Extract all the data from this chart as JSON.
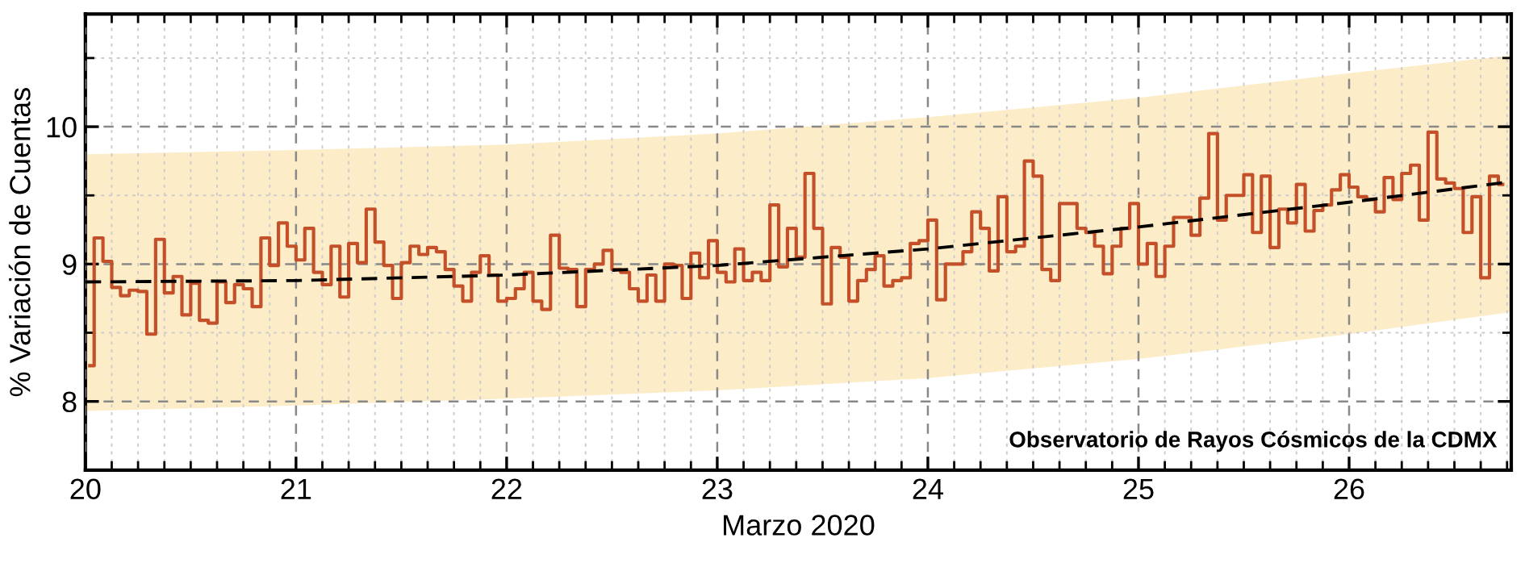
{
  "chart_data": {
    "type": "step",
    "xlabel": "Marzo 2020",
    "ylabel": "% Variación de Cuentas",
    "xlim": [
      20,
      26.77
    ],
    "ylim": [
      7.5,
      10.82
    ],
    "xticks": [
      20,
      {
        "value": 20.125,
        "label": null
      },
      {
        "value": 20.25,
        "label": null
      },
      {
        "value": 20.375,
        "label": null
      },
      {
        "value": 20.5,
        "label": null
      },
      {
        "value": 20.625,
        "label": null
      },
      {
        "value": 20.75,
        "label": null
      },
      {
        "value": 20.875,
        "label": null
      },
      21,
      {
        "value": 21.125,
        "label": null
      },
      {
        "value": 21.25,
        "label": null
      },
      {
        "value": 21.375,
        "label": null
      },
      {
        "value": 21.5,
        "label": null
      },
      {
        "value": 21.625,
        "label": null
      },
      {
        "value": 21.75,
        "label": null
      },
      {
        "value": 21.875,
        "label": null
      },
      22,
      {
        "value": 22.125,
        "label": null
      },
      {
        "value": 22.25,
        "label": null
      },
      {
        "value": 22.375,
        "label": null
      },
      {
        "value": 22.5,
        "label": null
      },
      {
        "value": 22.625,
        "label": null
      },
      {
        "value": 22.75,
        "label": null
      },
      {
        "value": 22.875,
        "label": null
      },
      23,
      {
        "value": 23.125,
        "label": null
      },
      {
        "value": 23.25,
        "label": null
      },
      {
        "value": 23.375,
        "label": null
      },
      {
        "value": 23.5,
        "label": null
      },
      {
        "value": 23.625,
        "label": null
      },
      {
        "value": 23.75,
        "label": null
      },
      {
        "value": 23.875,
        "label": null
      },
      24,
      {
        "value": 24.125,
        "label": null
      },
      {
        "value": 24.25,
        "label": null
      },
      {
        "value": 24.375,
        "label": null
      },
      {
        "value": 24.5,
        "label": null
      },
      {
        "value": 24.625,
        "label": null
      },
      {
        "value": 24.75,
        "label": null
      },
      {
        "value": 24.875,
        "label": null
      },
      25,
      {
        "value": 25.125,
        "label": null
      },
      {
        "value": 25.25,
        "label": null
      },
      {
        "value": 25.375,
        "label": null
      },
      {
        "value": 25.5,
        "label": null
      },
      {
        "value": 25.625,
        "label": null
      },
      {
        "value": 25.75,
        "label": null
      },
      {
        "value": 25.875,
        "label": null
      },
      26,
      {
        "value": 26.125,
        "label": null
      },
      {
        "value": 26.25,
        "label": null
      },
      {
        "value": 26.375,
        "label": null
      },
      {
        "value": 26.5,
        "label": null
      },
      {
        "value": 26.625,
        "label": null
      },
      {
        "value": 26.75,
        "label": null
      }
    ],
    "yticks": [
      8,
      {
        "value": 8.5,
        "label": null
      },
      9,
      {
        "value": 9.5,
        "label": null
      },
      10,
      {
        "value": 10.5,
        "label": null
      }
    ],
    "grid": true,
    "annotations": [
      "Observatorio de Rayos Cósmicos de la CDMX"
    ],
    "series": [
      {
        "type": "line",
        "color": "#000000",
        "line_style": "dashed",
        "x": [
          20,
          21,
          22,
          23,
          24,
          25,
          26,
          26.77
        ],
        "values": [
          8.87,
          8.88,
          8.92,
          8.99,
          9.11,
          9.27,
          9.45,
          9.6
        ],
        "lower": [
          7.93,
          7.97,
          8.02,
          8.08,
          8.17,
          8.31,
          8.49,
          8.65
        ],
        "upper": [
          9.8,
          9.83,
          9.87,
          9.95,
          10.07,
          10.21,
          10.39,
          10.52
        ]
      },
      {
        "color": "#c4502a",
        "x": [
          20.0208,
          20.0625,
          20.1042,
          20.1458,
          20.1875,
          20.2292,
          20.2708,
          20.3125,
          20.3542,
          20.3958,
          20.4375,
          20.4792,
          20.5208,
          20.5625,
          20.6042,
          20.6458,
          20.6875,
          20.7292,
          20.7708,
          20.8125,
          20.8542,
          20.8958,
          20.9375,
          20.9792,
          21.0208,
          21.0625,
          21.1042,
          21.1458,
          21.1875,
          21.2292,
          21.2708,
          21.3125,
          21.3542,
          21.3958,
          21.4375,
          21.4792,
          21.5208,
          21.5625,
          21.6042,
          21.6458,
          21.6875,
          21.7292,
          21.7708,
          21.8125,
          21.8542,
          21.8958,
          21.9375,
          21.9792,
          22.0208,
          22.0625,
          22.1042,
          22.1458,
          22.1875,
          22.2292,
          22.2708,
          22.3125,
          22.3542,
          22.3958,
          22.4375,
          22.4792,
          22.5208,
          22.5625,
          22.6042,
          22.6458,
          22.6875,
          22.7292,
          22.7708,
          22.8125,
          22.8542,
          22.8958,
          22.9375,
          22.9792,
          23.0208,
          23.0625,
          23.1042,
          23.1458,
          23.1875,
          23.2292,
          23.2708,
          23.3125,
          23.3542,
          23.3958,
          23.4375,
          23.4792,
          23.5208,
          23.5625,
          23.6042,
          23.6458,
          23.6875,
          23.7292,
          23.7708,
          23.8125,
          23.8542,
          23.8958,
          23.9375,
          23.9792,
          24.0208,
          24.0625,
          24.1042,
          24.1458,
          24.1875,
          24.2292,
          24.2708,
          24.3125,
          24.3542,
          24.3958,
          24.4375,
          24.4792,
          24.5208,
          24.5625,
          24.6042,
          24.6458,
          24.6875,
          24.7292,
          24.7708,
          24.8125,
          24.8542,
          24.8958,
          24.9375,
          24.9792,
          25.0208,
          25.0625,
          25.1042,
          25.1458,
          25.1875,
          25.2292,
          25.2708,
          25.3125,
          25.3542,
          25.3958,
          25.4375,
          25.4792,
          25.5208,
          25.5625,
          25.6042,
          25.6458,
          25.6875,
          25.7292,
          25.7708,
          25.8125,
          25.8542,
          25.8958,
          25.9375,
          25.9792,
          26.0208,
          26.0625,
          26.1042,
          26.1458,
          26.1875,
          26.2292,
          26.2708,
          26.3125,
          26.3542,
          26.3958,
          26.4375,
          26.4792,
          26.5208,
          26.5625,
          26.6042,
          26.6458,
          26.6875,
          26.7292
        ],
        "values": [
          8.26,
          9.19,
          9.02,
          8.83,
          8.77,
          8.81,
          8.8,
          8.49,
          9.18,
          8.79,
          8.91,
          8.63,
          8.86,
          8.59,
          8.57,
          8.87,
          8.72,
          8.85,
          8.82,
          8.69,
          9.19,
          8.99,
          9.3,
          9.13,
          9.03,
          9.26,
          8.94,
          8.85,
          9.13,
          8.76,
          9.15,
          9.01,
          9.4,
          9.16,
          8.99,
          8.75,
          9.01,
          9.13,
          9.07,
          9.12,
          9.09,
          8.96,
          8.84,
          8.73,
          8.94,
          9.06,
          8.92,
          8.73,
          8.75,
          8.82,
          8.94,
          8.73,
          8.67,
          9.21,
          8.97,
          8.96,
          8.69,
          8.96,
          9.0,
          9.1,
          8.96,
          8.94,
          8.82,
          8.73,
          8.92,
          8.73,
          9.0,
          8.99,
          8.75,
          9.08,
          8.9,
          9.17,
          8.94,
          8.87,
          9.11,
          8.88,
          8.94,
          8.88,
          9.43,
          8.98,
          9.26,
          9.05,
          9.66,
          9.26,
          8.71,
          9.12,
          9.05,
          8.73,
          8.88,
          8.96,
          9.06,
          8.84,
          8.88,
          8.9,
          9.15,
          9.17,
          9.32,
          8.74,
          9.0,
          9.0,
          9.09,
          9.38,
          9.26,
          8.95,
          9.49,
          9.09,
          9.13,
          9.75,
          9.64,
          8.96,
          8.88,
          9.44,
          9.44,
          9.26,
          9.23,
          9.13,
          8.93,
          9.13,
          9.26,
          9.44,
          9.0,
          9.15,
          8.91,
          9.13,
          9.34,
          9.34,
          9.21,
          9.48,
          9.95,
          9.32,
          9.5,
          9.5,
          9.65,
          9.23,
          9.64,
          9.12,
          9.4,
          9.3,
          9.58,
          9.24,
          9.39,
          9.43,
          9.54,
          9.65,
          9.56,
          9.49,
          9.47,
          9.38,
          9.63,
          9.47,
          9.66,
          9.72,
          9.32,
          9.96,
          9.62,
          9.59,
          9.55,
          9.23,
          9.49,
          8.9,
          9.64,
          9.58
        ]
      }
    ]
  }
}
